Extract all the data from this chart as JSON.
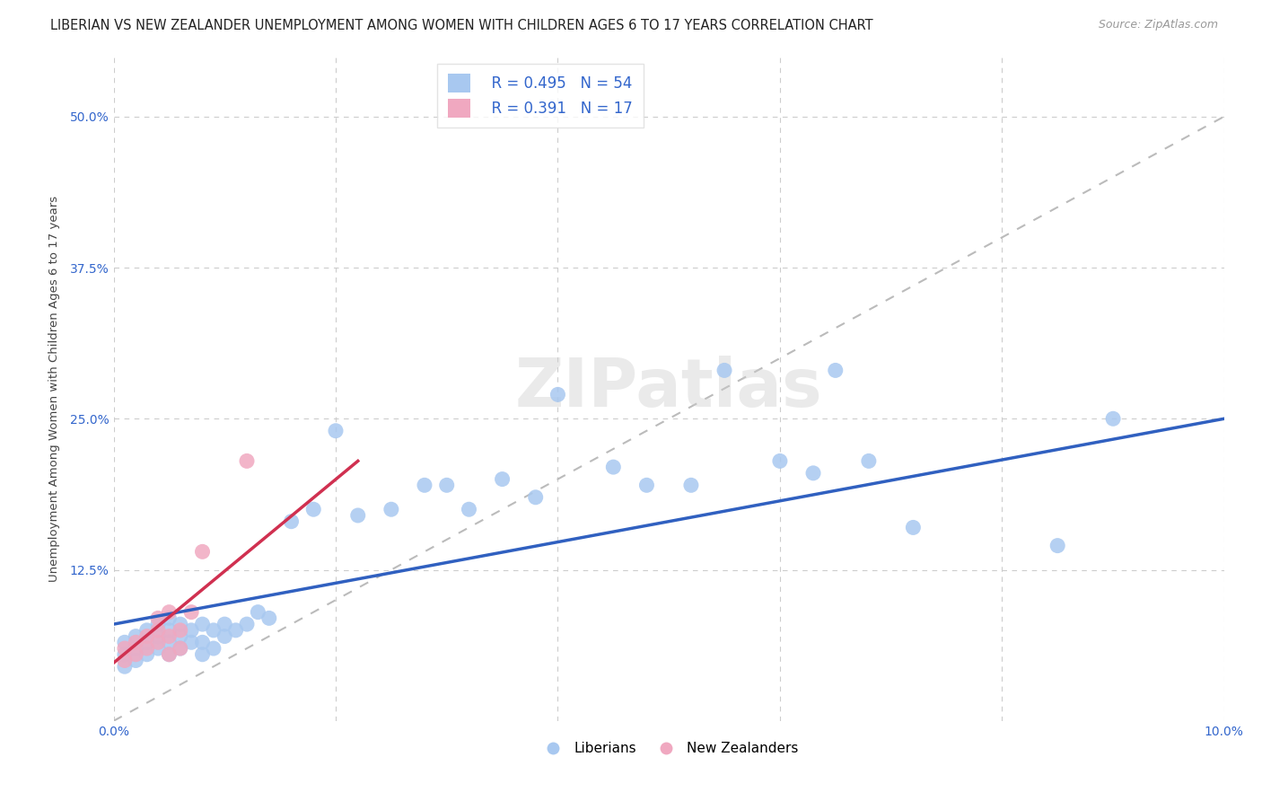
{
  "title": "LIBERIAN VS NEW ZEALANDER UNEMPLOYMENT AMONG WOMEN WITH CHILDREN AGES 6 TO 17 YEARS CORRELATION CHART",
  "source": "Source: ZipAtlas.com",
  "ylabel_text": "Unemployment Among Women with Children Ages 6 to 17 years",
  "xlim": [
    0.0,
    0.1
  ],
  "ylim": [
    0.0,
    0.55
  ],
  "liberian_color": "#a8c8f0",
  "nz_color": "#f0a8c0",
  "liberian_line_color": "#3060c0",
  "nz_line_color": "#d03050",
  "legend_color": "#3366cc",
  "legend_R_liberian": "0.495",
  "legend_N_liberian": "54",
  "legend_R_nz": "0.391",
  "legend_N_nz": "17",
  "watermark": "ZIPatlas",
  "background_color": "#ffffff",
  "grid_color": "#cccccc",
  "title_fontsize": 10.5,
  "tick_fontsize": 10,
  "tick_label_color": "#3366cc",
  "liberian_x": [
    0.001,
    0.001,
    0.001,
    0.002,
    0.002,
    0.002,
    0.003,
    0.003,
    0.003,
    0.004,
    0.004,
    0.004,
    0.005,
    0.005,
    0.005,
    0.005,
    0.006,
    0.006,
    0.006,
    0.007,
    0.007,
    0.008,
    0.008,
    0.008,
    0.009,
    0.009,
    0.01,
    0.01,
    0.011,
    0.012,
    0.013,
    0.014,
    0.016,
    0.018,
    0.02,
    0.022,
    0.025,
    0.028,
    0.03,
    0.032,
    0.035,
    0.038,
    0.04,
    0.045,
    0.048,
    0.052,
    0.055,
    0.06,
    0.063,
    0.065,
    0.068,
    0.072,
    0.085,
    0.09
  ],
  "liberian_y": [
    0.045,
    0.055,
    0.065,
    0.05,
    0.06,
    0.07,
    0.055,
    0.065,
    0.075,
    0.06,
    0.07,
    0.08,
    0.055,
    0.065,
    0.075,
    0.085,
    0.06,
    0.07,
    0.08,
    0.065,
    0.075,
    0.055,
    0.065,
    0.08,
    0.06,
    0.075,
    0.07,
    0.08,
    0.075,
    0.08,
    0.09,
    0.085,
    0.165,
    0.175,
    0.24,
    0.17,
    0.175,
    0.195,
    0.195,
    0.175,
    0.2,
    0.185,
    0.27,
    0.21,
    0.195,
    0.195,
    0.29,
    0.215,
    0.205,
    0.29,
    0.215,
    0.16,
    0.145,
    0.25
  ],
  "nz_x": [
    0.001,
    0.001,
    0.002,
    0.002,
    0.003,
    0.003,
    0.004,
    0.004,
    0.004,
    0.005,
    0.005,
    0.005,
    0.006,
    0.006,
    0.007,
    0.008,
    0.012
  ],
  "nz_y": [
    0.05,
    0.06,
    0.055,
    0.065,
    0.06,
    0.07,
    0.065,
    0.075,
    0.085,
    0.055,
    0.07,
    0.09,
    0.06,
    0.075,
    0.09,
    0.14,
    0.215
  ],
  "liberian_trendline_x": [
    0.0,
    0.1
  ],
  "liberian_trendline_y": [
    0.08,
    0.25
  ],
  "nz_trendline_x": [
    0.0,
    0.022
  ],
  "nz_trendline_y": [
    0.048,
    0.215
  ],
  "ref_line_x": [
    0.0,
    0.1
  ],
  "ref_line_y": [
    0.0,
    0.5
  ]
}
